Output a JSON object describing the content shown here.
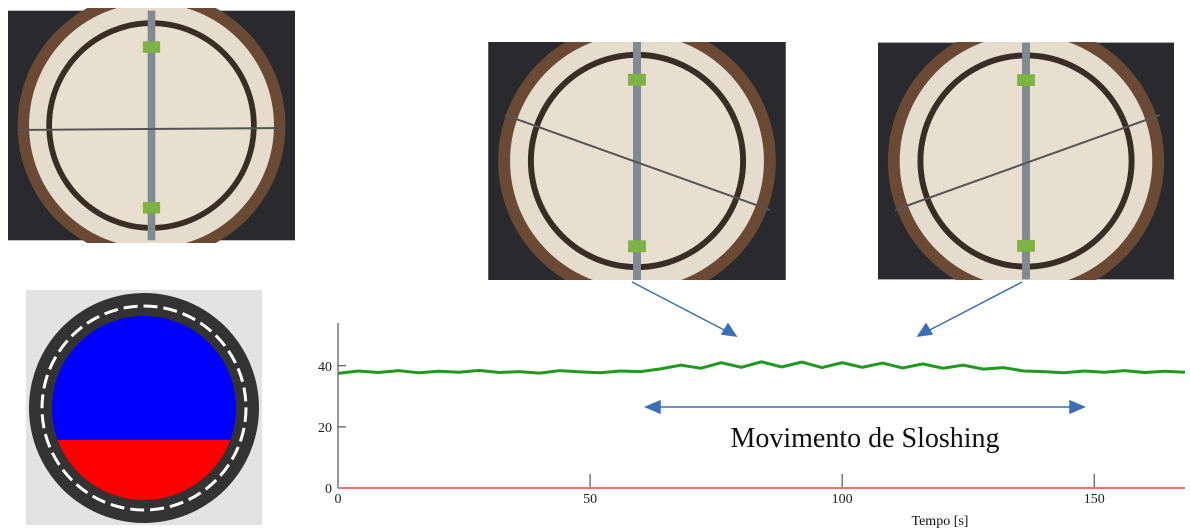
{
  "chart_data": {
    "type": "line",
    "x_label": "Tempo [s]",
    "annotation": "Movimento de Sloshing",
    "x": [
      0,
      4,
      8,
      12,
      16,
      20,
      24,
      28,
      32,
      36,
      40,
      44,
      48,
      52,
      56,
      60,
      64,
      68,
      72,
      76,
      80,
      84,
      88,
      92,
      96,
      100,
      104,
      108,
      112,
      116,
      120,
      124,
      128,
      132,
      136,
      140,
      144,
      148,
      152,
      156,
      160,
      164,
      168
    ],
    "series": [
      {
        "color": "#1e9a1e",
        "values": [
          37.5,
          38.3,
          37.8,
          38.4,
          37.7,
          38.2,
          37.9,
          38.5,
          37.8,
          38.1,
          37.6,
          38.4,
          38,
          37.7,
          38.3,
          38.1,
          39,
          40.2,
          39.2,
          41,
          39.5,
          41.3,
          39.6,
          41.2,
          39.4,
          41,
          39.5,
          40.9,
          39.3,
          40.6,
          39.2,
          40.2,
          38.9,
          39.4,
          38.3,
          38.1,
          37.7,
          38.3,
          37.9,
          38.4,
          37.8,
          38.2,
          37.9
        ]
      },
      {
        "color": "#f07070",
        "values": [
          0,
          0,
          0,
          0,
          0,
          0,
          0,
          0,
          0,
          0,
          0,
          0,
          0,
          0,
          0,
          0,
          0,
          0,
          0,
          0,
          0,
          0,
          0,
          0,
          0,
          0,
          0,
          0,
          0,
          0,
          0,
          0,
          0,
          0,
          0,
          0,
          0,
          0,
          0,
          0,
          0,
          0,
          0
        ]
      }
    ],
    "xlim": [
      0,
      169
    ],
    "ylim": [
      0,
      54
    ],
    "xticks": [
      0,
      50,
      100,
      150
    ],
    "yticks": [
      0,
      20,
      40
    ],
    "grid": false
  }
}
